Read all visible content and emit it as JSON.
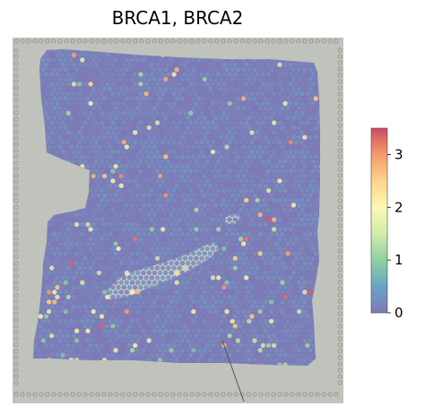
{
  "chart_data": {
    "type": "heatmap",
    "title": "BRCA1, BRCA2",
    "xlabel": "",
    "ylabel": "",
    "colorbar": {
      "vmin": 0,
      "vmax": 3.5,
      "ticks": [
        0,
        1,
        2,
        3
      ],
      "tick_labels": [
        "0",
        "1",
        "2",
        "3"
      ],
      "colormap": "Spectral_r"
    },
    "background_colors": {
      "tissue_image": "#bdbfb9",
      "low_value": "#6b5fa8",
      "high_value": "#cd4059"
    },
    "value_distribution": {
      "typical_range": [
        0,
        0.5
      ],
      "occasional_highs": [
        1,
        2,
        3
      ]
    }
  }
}
